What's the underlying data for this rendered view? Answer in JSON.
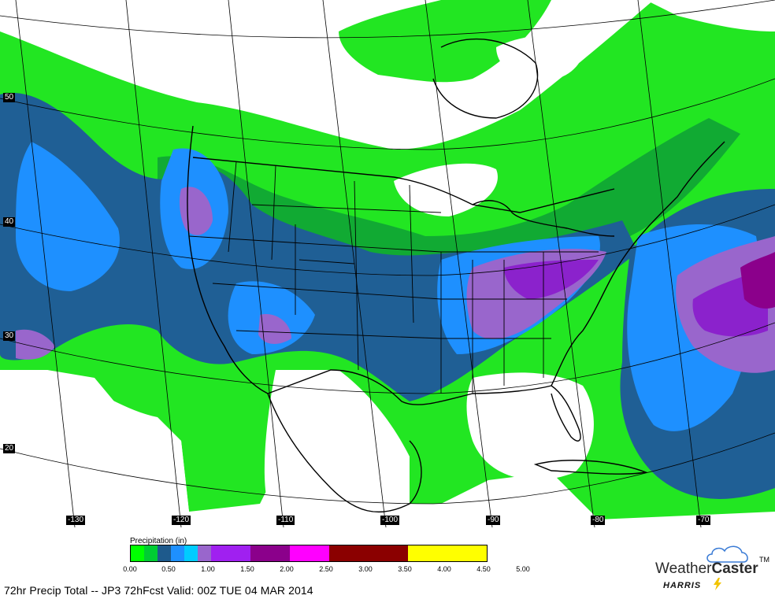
{
  "map": {
    "latitude_labels": [
      "50",
      "40",
      "30",
      "20"
    ],
    "longitude_labels": [
      "-130",
      "-120",
      "-110",
      "-100",
      "-90",
      "-80",
      "-70"
    ]
  },
  "legend": {
    "title": "Precipitation (in)",
    "ticks": [
      "0.00",
      "0.50",
      "1.00",
      "1.50",
      "2.00",
      "2.50",
      "3.00",
      "3.50",
      "4.00",
      "4.50",
      "5.00"
    ],
    "colors": [
      "#00ff00",
      "#00cc33",
      "#1e5a8c",
      "#1e90ff",
      "#00ccff",
      "#9966cc",
      "#a020f0",
      "#8b008b",
      "#ff00ff",
      "#8b0000",
      "#8b0000",
      "#ffff00",
      "#ffff00",
      "#cc33cc"
    ]
  },
  "footer": {
    "text": "72hr Precip Total -- JP3  72hFcst Valid: 00Z TUE 04 MAR 2014"
  },
  "logo": {
    "weather": "Weather",
    "caster": "Caster",
    "tm": "TM",
    "harris": "HARRIS"
  }
}
